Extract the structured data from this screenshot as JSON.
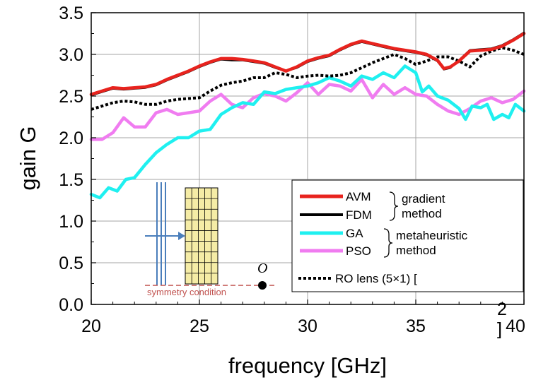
{
  "chart_data": {
    "type": "line",
    "xlabel": "frequency [GHz]",
    "ylabel": "gain G",
    "xlim": [
      20,
      40
    ],
    "ylim": [
      0.0,
      3.5
    ],
    "x_ticks": [
      "20",
      "25",
      "30",
      "35",
      "40"
    ],
    "y_ticks": [
      "0.0",
      "0.5",
      "1.0",
      "1.5",
      "2.0",
      "2.5",
      "3.0",
      "3.5"
    ],
    "grid": true,
    "legend_position": "bottom-right",
    "series": [
      {
        "name": "AVM",
        "color": "#e8231e",
        "style": "solid",
        "x": [
          20,
          20.5,
          21,
          21.5,
          22,
          22.5,
          23,
          23.5,
          24,
          24.5,
          25,
          25.5,
          26,
          26.5,
          27,
          27.5,
          28,
          28.5,
          29,
          29.5,
          30,
          30.5,
          31,
          31.5,
          32,
          32.5,
          33,
          33.5,
          34,
          34.5,
          35,
          35.5,
          36,
          36.3,
          36.6,
          37,
          37.5,
          38,
          38.5,
          39,
          39.5,
          40
        ],
        "y": [
          2.52,
          2.56,
          2.6,
          2.59,
          2.6,
          2.61,
          2.64,
          2.7,
          2.75,
          2.8,
          2.86,
          2.91,
          2.95,
          2.95,
          2.94,
          2.92,
          2.9,
          2.85,
          2.8,
          2.85,
          2.92,
          2.96,
          2.99,
          3.06,
          3.12,
          3.16,
          3.13,
          3.1,
          3.07,
          3.05,
          3.03,
          3.0,
          2.93,
          2.83,
          2.85,
          2.92,
          3.04,
          3.05,
          3.06,
          3.1,
          3.17,
          3.25
        ]
      },
      {
        "name": "FDM",
        "color": "#000000",
        "style": "solid",
        "x": [
          20,
          20.5,
          21,
          21.5,
          22,
          22.5,
          23,
          23.5,
          24,
          24.5,
          25,
          25.5,
          26,
          26.5,
          27,
          27.5,
          28,
          28.5,
          29,
          29.5,
          30,
          30.5,
          31,
          31.5,
          32,
          32.5,
          33,
          33.5,
          34,
          34.5,
          35,
          35.5,
          36,
          36.3,
          36.6,
          37,
          37.5,
          38,
          38.5,
          39,
          39.5,
          40
        ],
        "y": [
          2.51,
          2.55,
          2.59,
          2.58,
          2.59,
          2.6,
          2.63,
          2.69,
          2.74,
          2.79,
          2.85,
          2.9,
          2.94,
          2.93,
          2.93,
          2.91,
          2.89,
          2.84,
          2.8,
          2.84,
          2.91,
          2.95,
          2.98,
          3.05,
          3.11,
          3.15,
          3.12,
          3.09,
          3.06,
          3.04,
          3.02,
          2.99,
          2.92,
          2.82,
          2.84,
          2.93,
          3.05,
          3.06,
          3.07,
          3.11,
          3.18,
          3.26
        ]
      },
      {
        "name": "GA",
        "color": "#1ff0f0",
        "style": "solid",
        "x": [
          20,
          20.4,
          20.8,
          21.2,
          21.6,
          22,
          22.5,
          23,
          23.5,
          24,
          24.5,
          25,
          25.5,
          26,
          26.5,
          27,
          27.5,
          28,
          28.5,
          29,
          29.5,
          30,
          30.5,
          31,
          31.5,
          32,
          32.5,
          33,
          33.5,
          34,
          34.5,
          35,
          35.3,
          35.6,
          36,
          36.5,
          37,
          37.3,
          37.6,
          38,
          38.3,
          38.6,
          39,
          39.3,
          39.6,
          40
        ],
        "y": [
          1.32,
          1.28,
          1.4,
          1.36,
          1.5,
          1.52,
          1.68,
          1.82,
          1.92,
          2.0,
          2.0,
          2.08,
          2.1,
          2.28,
          2.36,
          2.42,
          2.4,
          2.55,
          2.53,
          2.58,
          2.6,
          2.62,
          2.66,
          2.72,
          2.68,
          2.62,
          2.74,
          2.7,
          2.78,
          2.72,
          2.86,
          2.78,
          2.55,
          2.62,
          2.5,
          2.45,
          2.35,
          2.22,
          2.38,
          2.36,
          2.4,
          2.22,
          2.28,
          2.24,
          2.4,
          2.32
        ]
      },
      {
        "name": "PSO",
        "color": "#f07cf0",
        "style": "solid",
        "x": [
          20,
          20.5,
          21,
          21.5,
          22,
          22.5,
          23,
          23.5,
          24,
          24.5,
          25,
          25.5,
          26,
          26.5,
          27,
          27.5,
          28,
          28.5,
          29,
          29.5,
          30,
          30.5,
          31,
          31.5,
          32,
          32.5,
          33,
          33.5,
          34,
          34.5,
          35,
          35.5,
          36,
          36.5,
          37,
          37.5,
          38,
          38.5,
          39,
          39.5,
          40
        ],
        "y": [
          1.98,
          1.98,
          2.06,
          2.24,
          2.13,
          2.13,
          2.3,
          2.34,
          2.28,
          2.3,
          2.32,
          2.44,
          2.52,
          2.4,
          2.36,
          2.48,
          2.53,
          2.5,
          2.44,
          2.54,
          2.66,
          2.52,
          2.64,
          2.62,
          2.56,
          2.7,
          2.48,
          2.64,
          2.52,
          2.6,
          2.52,
          2.5,
          2.4,
          2.32,
          2.28,
          2.35,
          2.44,
          2.48,
          2.42,
          2.46,
          2.56
        ]
      },
      {
        "name": "RO lens (5×1) [",
        "color": "#000000",
        "style": "dotted",
        "x": [
          20,
          20.5,
          21,
          21.5,
          22,
          22.5,
          23,
          23.5,
          24,
          24.5,
          25,
          25.5,
          26,
          26.5,
          27,
          27.5,
          28,
          28.5,
          29,
          29.5,
          30,
          30.5,
          31,
          31.5,
          32,
          32.5,
          33,
          33.5,
          34,
          34.5,
          35,
          35.5,
          36,
          36.5,
          37,
          37.5,
          38,
          38.5,
          39,
          39.5,
          40
        ],
        "y": [
          2.34,
          2.38,
          2.42,
          2.44,
          2.43,
          2.4,
          2.4,
          2.44,
          2.46,
          2.47,
          2.48,
          2.56,
          2.63,
          2.66,
          2.68,
          2.72,
          2.72,
          2.78,
          2.76,
          2.72,
          2.74,
          2.75,
          2.74,
          2.75,
          2.78,
          2.84,
          2.9,
          2.95,
          3.0,
          2.95,
          2.88,
          2.92,
          2.97,
          2.97,
          2.92,
          2.85,
          2.98,
          3.04,
          3.08,
          3.05,
          3.0
        ]
      }
    ],
    "legend_groups": [
      {
        "label_line1": "gradient",
        "label_line2": "method"
      },
      {
        "label_line1": "metaheuristic",
        "label_line2": "method"
      }
    ],
    "annotations": {
      "origin_label": "O",
      "symmetry_label": "symmetry condition",
      "superscript_ref": "2",
      "closing_bracket": "]"
    }
  }
}
